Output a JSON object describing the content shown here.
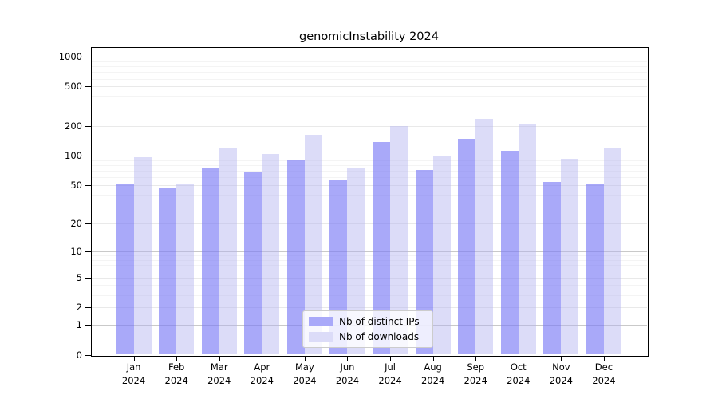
{
  "title": "genomicInstability 2024",
  "chart_data": {
    "type": "bar",
    "title": "genomicInstability 2024",
    "categories": [
      "Jan",
      "Feb",
      "Mar",
      "Apr",
      "May",
      "Jun",
      "Jul",
      "Aug",
      "Sep",
      "Oct",
      "Nov",
      "Dec"
    ],
    "year_label": "2024",
    "series": [
      {
        "name": "Nb of distinct IPs",
        "values": [
          52,
          46,
          75,
          67,
          91,
          57,
          138,
          71,
          148,
          112,
          54,
          52
        ]
      },
      {
        "name": "Nb of downloads",
        "values": [
          97,
          51,
          120,
          103,
          162,
          76,
          200,
          100,
          235,
          208,
          92,
          121
        ]
      }
    ],
    "yticks": [
      0,
      1,
      2,
      5,
      10,
      20,
      50,
      100,
      200,
      500,
      1000
    ],
    "minor_grid_values": [
      3,
      4,
      6,
      7,
      8,
      9,
      30,
      40,
      60,
      70,
      80,
      90,
      300,
      400,
      600,
      700,
      800,
      900
    ],
    "scale": "log1p",
    "ylim": [
      0,
      1250
    ],
    "grid": true,
    "legend_position": "inside-bottom-center",
    "colors": {
      "ips_fill": "rgba(123,123,246,0.65)",
      "ips_solid": "#a9a9f9",
      "downloads_fill": "rgba(177,177,239,0.45)",
      "downloads_solid": "#dcdcf8",
      "grid_power": "#c9c9c9",
      "grid_labeled": "#e9e9e9",
      "grid_minor": "#f4f4f4",
      "axis": "#000000"
    }
  }
}
